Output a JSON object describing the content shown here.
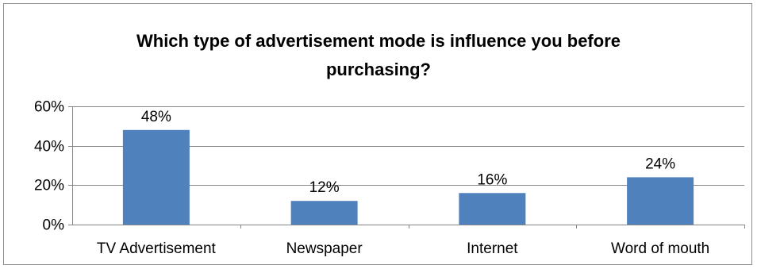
{
  "chart_data": {
    "type": "bar",
    "title_lines": [
      "Which type of advertisement mode is influence you before",
      "purchasing?"
    ],
    "categories": [
      "TV Advertisement",
      "Newspaper",
      "Internet",
      "Word of mouth"
    ],
    "values": [
      48,
      12,
      16,
      24
    ],
    "data_labels": [
      "48%",
      "12%",
      "16%",
      "24%"
    ],
    "yticks": [
      "0%",
      "20%",
      "40%",
      "60%"
    ],
    "ylim": [
      0,
      60
    ],
    "grid": true,
    "legend": "none",
    "bar_color": "#4f81bd",
    "grid_color": "#868686"
  }
}
